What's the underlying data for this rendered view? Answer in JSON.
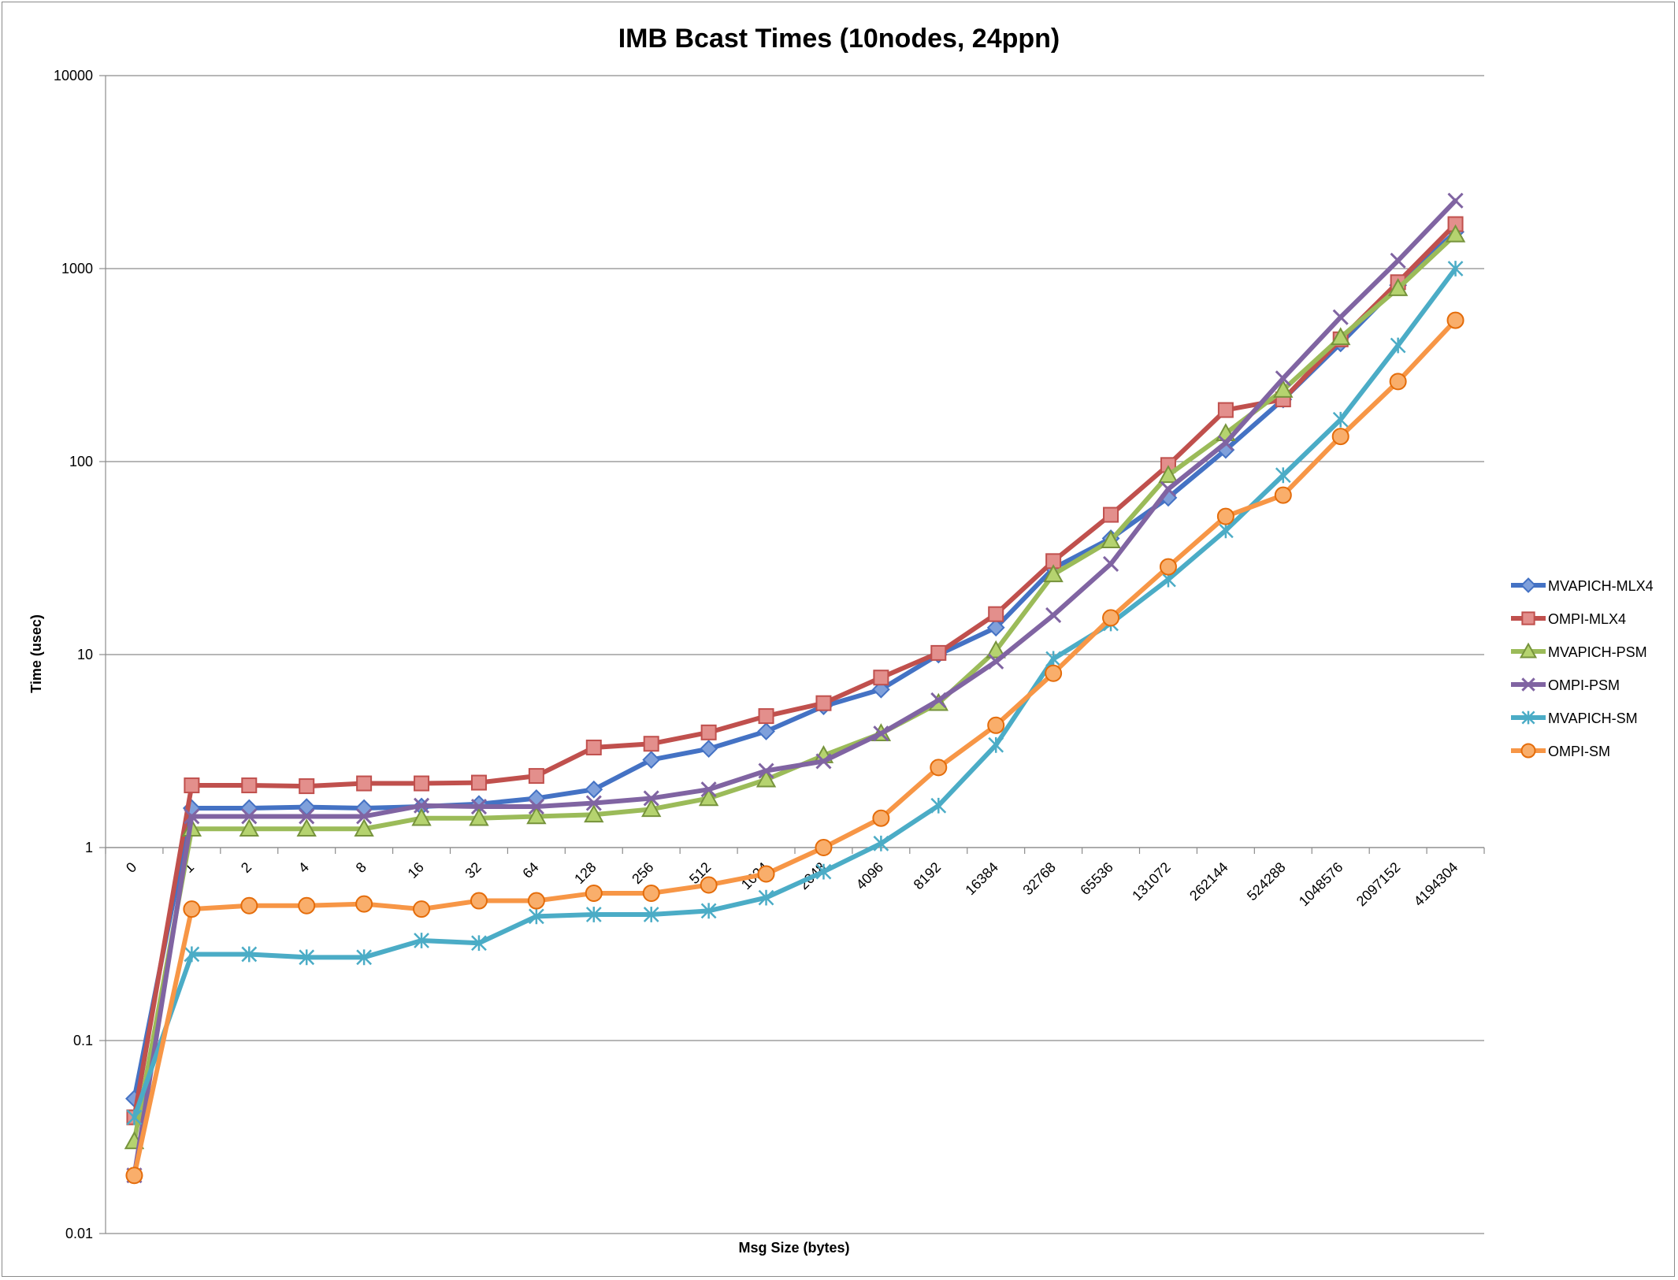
{
  "chart_data": {
    "type": "line",
    "title": "IMB Bcast Times (10nodes, 24ppn)",
    "xlabel": "Msg Size (bytes)",
    "ylabel": "Time (usec)",
    "y_scale": "log",
    "ylim": [
      0.01,
      10000
    ],
    "y_ticks": [
      "0.01",
      "0.1",
      "1",
      "10",
      "100",
      "1000",
      "10000"
    ],
    "grid": "horizontal major gridlines",
    "legend_position": "right",
    "categories": [
      "0",
      "1",
      "2",
      "4",
      "8",
      "16",
      "32",
      "64",
      "128",
      "256",
      "512",
      "1024",
      "2048",
      "4096",
      "8192",
      "16384",
      "32768",
      "65536",
      "131072",
      "262144",
      "524288",
      "1048576",
      "2097152",
      "4194304"
    ],
    "series": [
      {
        "name": "MVAPICH-MLX4",
        "color": "#4472C4",
        "marker": "diamond",
        "values": [
          0.05,
          1.6,
          1.6,
          1.62,
          1.6,
          1.63,
          1.68,
          1.8,
          2.0,
          2.85,
          3.25,
          4.0,
          5.4,
          6.6,
          10.0,
          13.8,
          28.0,
          40.0,
          65.0,
          115.0,
          210.0,
          410.0,
          820.0,
          1550.0
        ]
      },
      {
        "name": "OMPI-MLX4",
        "color": "#C0504D",
        "marker": "square",
        "values": [
          0.04,
          2.1,
          2.1,
          2.08,
          2.15,
          2.15,
          2.17,
          2.35,
          3.3,
          3.45,
          3.95,
          4.8,
          5.6,
          7.6,
          10.2,
          16.2,
          30.5,
          53.0,
          96.0,
          185.0,
          210.0,
          430.0,
          850.0,
          1700.0
        ]
      },
      {
        "name": "MVAPICH-PSM",
        "color": "#9BBB59",
        "marker": "triangle",
        "values": [
          0.03,
          1.25,
          1.25,
          1.25,
          1.25,
          1.42,
          1.42,
          1.45,
          1.48,
          1.58,
          1.8,
          2.25,
          3.0,
          3.9,
          5.6,
          10.5,
          26.0,
          39.0,
          85.0,
          140.0,
          235.0,
          440.0,
          790.0,
          1500.0
        ]
      },
      {
        "name": "OMPI-PSM",
        "color": "#8064A2",
        "marker": "x",
        "values": [
          0.02,
          1.45,
          1.45,
          1.45,
          1.45,
          1.65,
          1.63,
          1.63,
          1.7,
          1.8,
          2.0,
          2.5,
          2.8,
          3.9,
          5.8,
          9.2,
          16.0,
          29.5,
          72.0,
          125.0,
          270.0,
          560.0,
          1100.0,
          2250.0
        ]
      },
      {
        "name": "MVAPICH-SM",
        "color": "#4BACC6",
        "marker": "asterisk",
        "values": [
          0.04,
          0.28,
          0.28,
          0.27,
          0.27,
          0.33,
          0.32,
          0.44,
          0.45,
          0.45,
          0.47,
          0.55,
          0.75,
          1.05,
          1.65,
          3.4,
          9.5,
          14.5,
          24.5,
          44.0,
          85.0,
          165.0,
          400.0,
          1000.0
        ]
      },
      {
        "name": "OMPI-SM",
        "color": "#F79646",
        "marker": "circle",
        "values": [
          0.02,
          0.48,
          0.5,
          0.5,
          0.51,
          0.48,
          0.53,
          0.53,
          0.58,
          0.58,
          0.64,
          0.73,
          1.0,
          1.42,
          2.6,
          4.3,
          8.0,
          15.5,
          28.5,
          52.0,
          67.0,
          135.0,
          260.0,
          540.0
        ]
      }
    ]
  }
}
